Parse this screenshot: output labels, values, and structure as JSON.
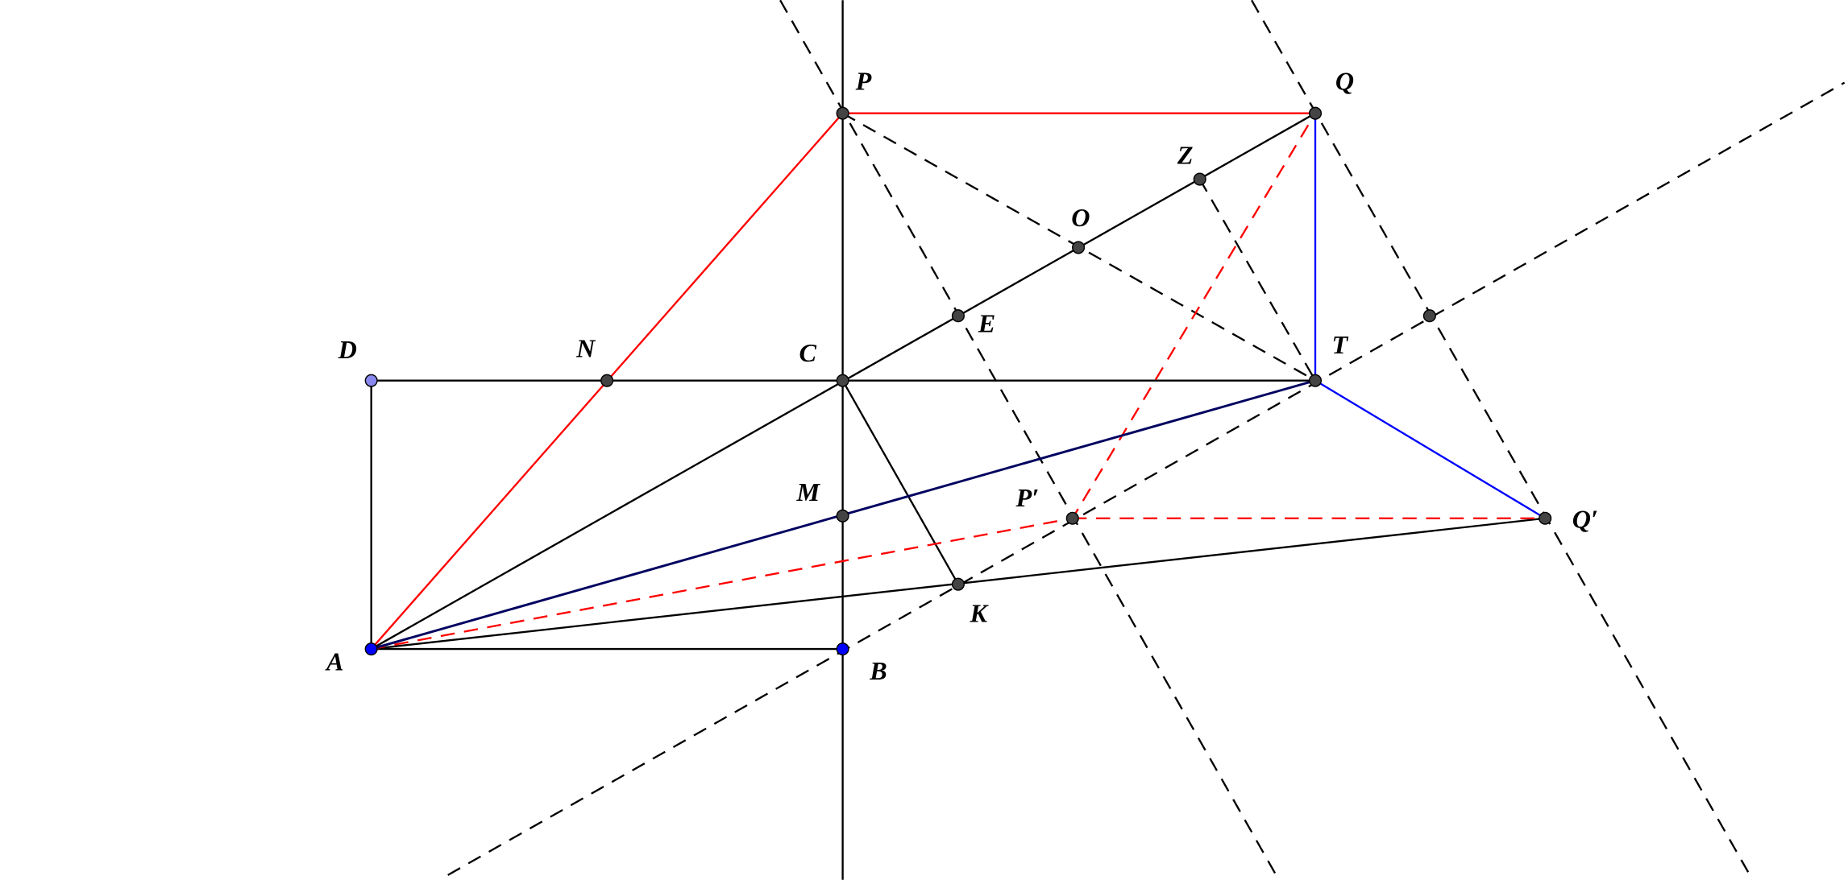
{
  "points": [
    {
      "label": "P"
    },
    {
      "label": "Q"
    },
    {
      "label": "Z"
    },
    {
      "label": "O"
    },
    {
      "label": "E"
    },
    {
      "label": "C"
    },
    {
      "label": "D"
    },
    {
      "label": "N"
    },
    {
      "label": "T"
    },
    {
      "label": "M"
    },
    {
      "label": "P′"
    },
    {
      "label": "Q′"
    },
    {
      "label": "K"
    },
    {
      "label": "A"
    },
    {
      "label": "B"
    }
  ]
}
